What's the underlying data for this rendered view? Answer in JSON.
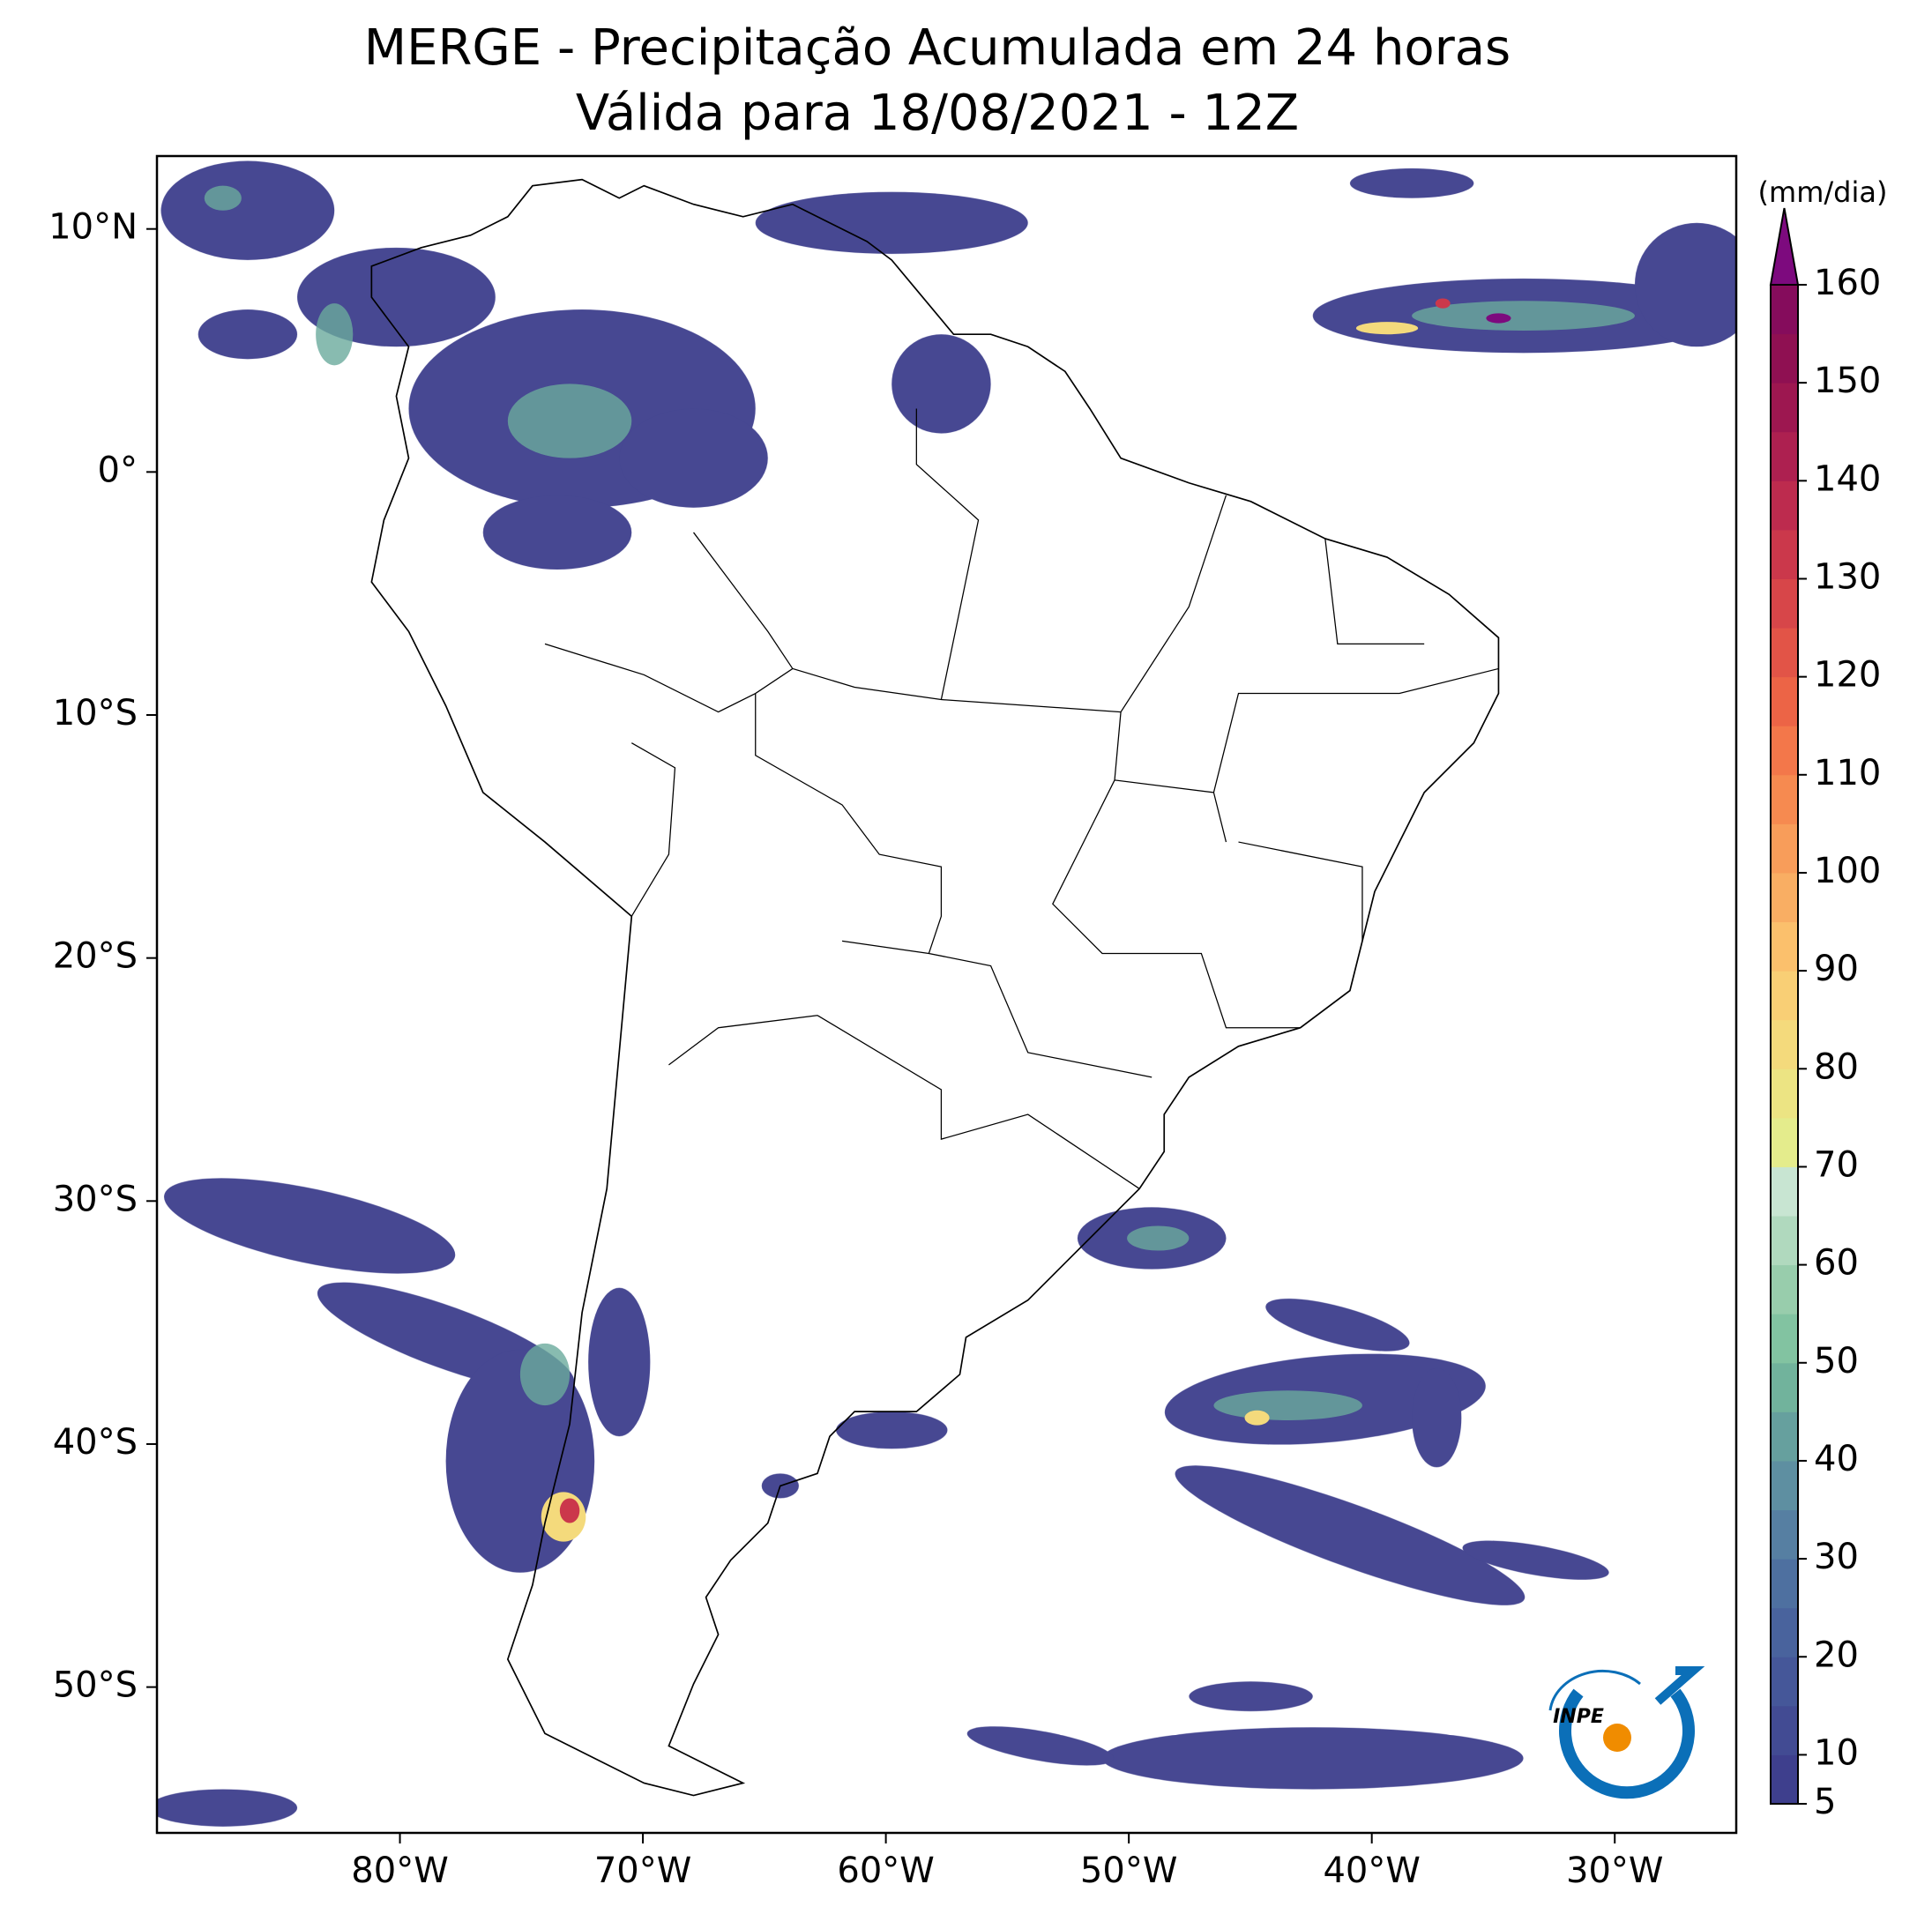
{
  "chart_data": {
    "type": "map",
    "title": "MERGE - Precipitação Acumulada em 24 horas",
    "subtitle": "Válida para 18/08/2021 - 12Z",
    "xlim": [
      -90,
      -25
    ],
    "ylim": [
      -56,
      13
    ],
    "xticks": [
      {
        "value": -80,
        "label": "80°W"
      },
      {
        "value": -70,
        "label": "70°W"
      },
      {
        "value": -60,
        "label": "60°W"
      },
      {
        "value": -50,
        "label": "50°W"
      },
      {
        "value": -40,
        "label": "40°W"
      },
      {
        "value": -30,
        "label": "30°W"
      }
    ],
    "yticks": [
      {
        "value": 10,
        "label": "10°N"
      },
      {
        "value": 0,
        "label": "0°"
      },
      {
        "value": -10,
        "label": "10°S"
      },
      {
        "value": -20,
        "label": "20°S"
      },
      {
        "value": -30,
        "label": "30°S"
      },
      {
        "value": -40,
        "label": "40°S"
      },
      {
        "value": -50,
        "label": "50°S"
      }
    ],
    "colorbar": {
      "label": "(mm/dia)",
      "lim": [
        5,
        160
      ],
      "ticks": [
        5,
        10,
        20,
        30,
        40,
        50,
        60,
        70,
        80,
        90,
        100,
        110,
        120,
        130,
        140,
        150,
        160
      ],
      "colors": [
        "#3e3f8d",
        "#424b93",
        "#455799",
        "#49639d",
        "#4e70a0",
        "#567fa2",
        "#5e8fa1",
        "#66a09e",
        "#71b39c",
        "#82c3a1",
        "#98cdac",
        "#b0d9be",
        "#c8e5d2",
        "#e4ec8c",
        "#ece483",
        "#f4da7c",
        "#f9cf75",
        "#fbc06c",
        "#f9ae63",
        "#f89d5a",
        "#f68a50",
        "#f3774a",
        "#ec6446",
        "#e25447",
        "#d74649",
        "#cb384b",
        "#bd2b4e",
        "#ad2050",
        "#9d1750",
        "#8f1052",
        "#850c5c"
      ],
      "extend_color": "#7d0a7e"
    },
    "logo_text": "INPE"
  }
}
